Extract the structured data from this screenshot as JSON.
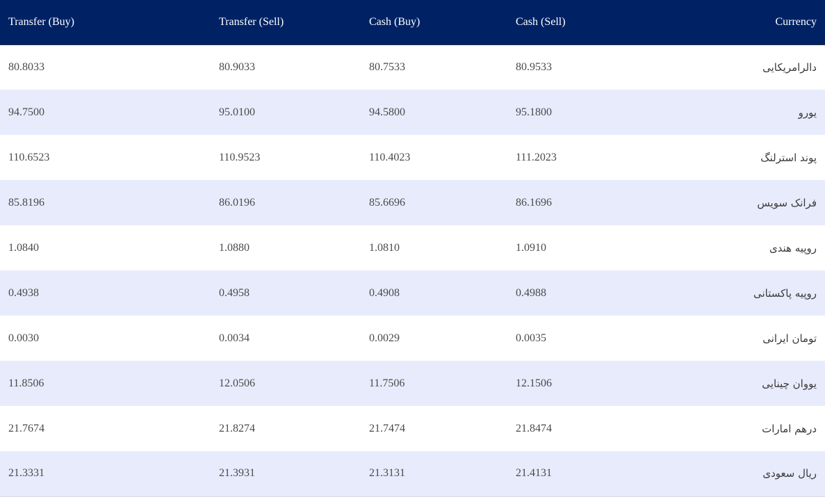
{
  "table": {
    "headers": {
      "currency": "Currency",
      "cash_sell": "Cash (Sell)",
      "cash_buy": "Cash (Buy)",
      "transfer_sell": "Transfer (Sell)",
      "transfer_buy": "Transfer (Buy)"
    },
    "rows": [
      {
        "currency": "دالرامریکایی",
        "cash_sell": "80.9533",
        "cash_buy": "80.7533",
        "transfer_sell": "80.9033",
        "transfer_buy": "80.8033"
      },
      {
        "currency": "یورو",
        "cash_sell": "95.1800",
        "cash_buy": "94.5800",
        "transfer_sell": "95.0100",
        "transfer_buy": "94.7500"
      },
      {
        "currency": "پوند استرلنگ",
        "cash_sell": "111.2023",
        "cash_buy": "110.4023",
        "transfer_sell": "110.9523",
        "transfer_buy": "110.6523"
      },
      {
        "currency": "فرانک سویس",
        "cash_sell": "86.1696",
        "cash_buy": "85.6696",
        "transfer_sell": "86.0196",
        "transfer_buy": "85.8196"
      },
      {
        "currency": "روپیه هندی",
        "cash_sell": "1.0910",
        "cash_buy": "1.0810",
        "transfer_sell": "1.0880",
        "transfer_buy": "1.0840"
      },
      {
        "currency": "روپیه پاکستانی",
        "cash_sell": "0.4988",
        "cash_buy": "0.4908",
        "transfer_sell": "0.4958",
        "transfer_buy": "0.4938"
      },
      {
        "currency": "تومان ایرانی",
        "cash_sell": "0.0035",
        "cash_buy": "0.0029",
        "transfer_sell": "0.0034",
        "transfer_buy": "0.0030"
      },
      {
        "currency": "یووان چینایی",
        "cash_sell": "12.1506",
        "cash_buy": "11.7506",
        "transfer_sell": "12.0506",
        "transfer_buy": "11.8506"
      },
      {
        "currency": "درهم امارات",
        "cash_sell": "21.8474",
        "cash_buy": "21.7474",
        "transfer_sell": "21.8274",
        "transfer_buy": "21.7674"
      },
      {
        "currency": "ریال سعودی",
        "cash_sell": "21.4131",
        "cash_buy": "21.3131",
        "transfer_sell": "21.3931",
        "transfer_buy": "21.3331"
      }
    ]
  },
  "colors": {
    "header_bg": "#002265",
    "row_alt_bg": "#e8ebfb",
    "row_bg": "#ffffff"
  }
}
